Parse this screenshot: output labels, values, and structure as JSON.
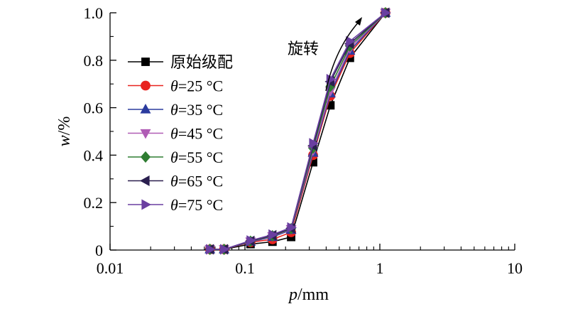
{
  "chart_data": {
    "type": "line",
    "xscale": "log",
    "xlim": [
      0.01,
      10
    ],
    "ylim": [
      0,
      1.0
    ],
    "x_ticks": [
      0.01,
      0.1,
      1,
      10
    ],
    "x_tick_labels": [
      "0.01",
      "0.1",
      "1",
      "10"
    ],
    "y_ticks": [
      0,
      0.2,
      0.4,
      0.6,
      0.8,
      1.0
    ],
    "y_tick_labels": [
      "0",
      "0.2",
      "0.4",
      "0.6",
      "0.8",
      "1.0"
    ],
    "xlabel": {
      "italic": "p",
      "rest": "/mm"
    },
    "ylabel": {
      "italic": "w",
      "rest": "/%"
    },
    "legend_position": "left",
    "annotation": {
      "text": "旋转"
    },
    "grid": false,
    "x": [
      0.055,
      0.07,
      0.11,
      0.16,
      0.22,
      0.32,
      0.43,
      0.6,
      1.1
    ],
    "series": [
      {
        "name": "原始级配",
        "prefix": "",
        "italic": "",
        "rest": "原始级配",
        "color": "#000000",
        "marker": "square",
        "values": [
          0.003,
          0.003,
          0.025,
          0.035,
          0.055,
          0.37,
          0.61,
          0.81,
          1.0
        ]
      },
      {
        "name": "θ=25 °C",
        "prefix": "",
        "italic": "θ",
        "rest": "=25 °C",
        "color": "#e8231f",
        "marker": "circle",
        "values": [
          0.003,
          0.003,
          0.033,
          0.045,
          0.075,
          0.4,
          0.65,
          0.83,
          1.0
        ]
      },
      {
        "name": "θ=35 °C",
        "prefix": "",
        "italic": "θ",
        "rest": "=35 °C",
        "color": "#2b3b9e",
        "marker": "triangle-up",
        "values": [
          0.003,
          0.003,
          0.035,
          0.055,
          0.085,
          0.41,
          0.66,
          0.84,
          1.0
        ]
      },
      {
        "name": "θ=45 °C",
        "prefix": "",
        "italic": "θ",
        "rest": "=45 °C",
        "color": "#b05cb5",
        "marker": "triangle-down",
        "values": [
          0.003,
          0.003,
          0.036,
          0.058,
          0.088,
          0.42,
          0.67,
          0.85,
          1.0
        ]
      },
      {
        "name": "θ=55 °C",
        "prefix": "",
        "italic": "θ",
        "rest": "=55 °C",
        "color": "#2f7d32",
        "marker": "diamond",
        "values": [
          0.003,
          0.003,
          0.037,
          0.06,
          0.09,
          0.43,
          0.69,
          0.86,
          1.0
        ]
      },
      {
        "name": "θ=65 °C",
        "prefix": "",
        "italic": "θ",
        "rest": "=65 °C",
        "color": "#2a1f4f",
        "marker": "triangle-left",
        "values": [
          0.003,
          0.003,
          0.038,
          0.062,
          0.092,
          0.44,
          0.71,
          0.87,
          1.0
        ]
      },
      {
        "name": "θ=75 °C",
        "prefix": "",
        "italic": "θ",
        "rest": "=75 °C",
        "color": "#6a3fa0",
        "marker": "triangle-right",
        "values": [
          0.003,
          0.003,
          0.04,
          0.065,
          0.095,
          0.45,
          0.72,
          0.88,
          1.0
        ]
      }
    ]
  }
}
